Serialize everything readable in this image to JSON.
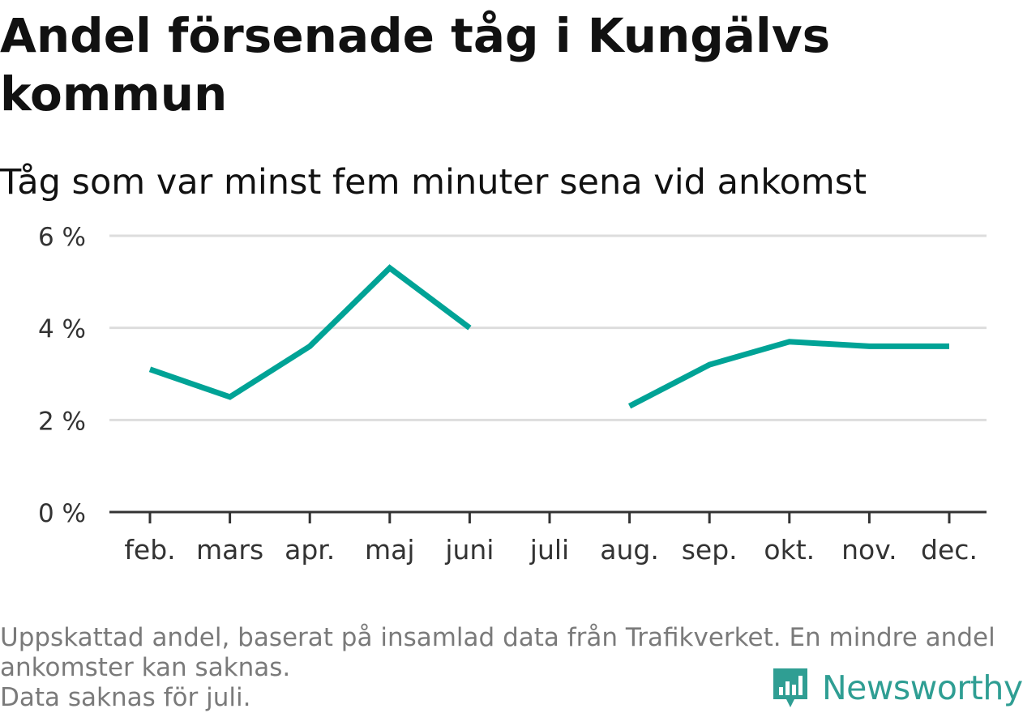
{
  "header": {
    "title": "Andel försenade tåg i Kungälvs kommun",
    "subtitle": "Tåg som var minst fem minuter sena vid ankomst"
  },
  "colors": {
    "line": "#00a396",
    "grid": "#dddddd",
    "axis": "#333333",
    "brand": "#2f9e93"
  },
  "chart_data": {
    "type": "line",
    "categories": [
      "feb.",
      "mars",
      "apr.",
      "maj",
      "juni",
      "juli",
      "aug.",
      "sep.",
      "okt.",
      "nov.",
      "dec."
    ],
    "series": [
      {
        "values": [
          3.1,
          2.5,
          3.6,
          5.3,
          4.0,
          null,
          2.3,
          3.2,
          3.7,
          3.6,
          3.6
        ]
      }
    ],
    "ylim": [
      0,
      6
    ],
    "yticks": [
      0,
      2,
      4,
      6
    ],
    "ytick_labels": [
      "0 %",
      "2 %",
      "4 %",
      "6 %"
    ],
    "grid": true
  },
  "footer": {
    "note_line1": "Uppskattad andel, baserat på insamlad data från Trafikverket. En mindre andel",
    "note_line2": "ankomster kan saknas.",
    "note_line3": "Data saknas för juli."
  },
  "brand": {
    "name": "Newsworthy",
    "logo_icon": "bar-chart-speech-bubble-icon"
  }
}
